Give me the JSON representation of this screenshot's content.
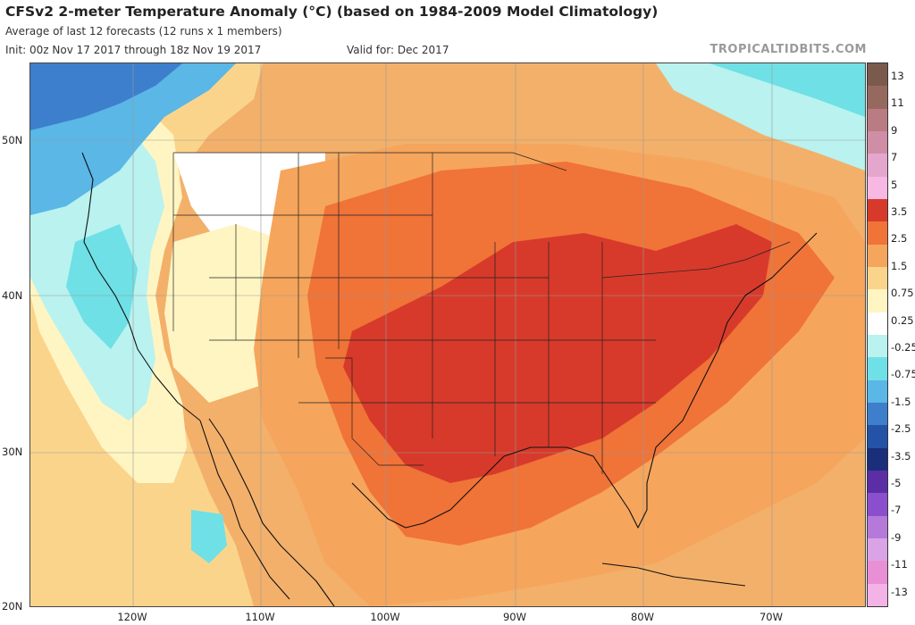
{
  "header": {
    "title": "CFSv2 2-meter Temperature Anomaly (°C) (based on 1984-2009 Model Climatology)",
    "subtitle": "Average of last 12 forecasts (12 runs x 1 members)",
    "init": "Init: 00z Nov 17 2017 through 18z Nov 19 2017",
    "valid": "Valid for: Dec 2017",
    "brand": "TROPICALTIDBITS.COM"
  },
  "axes": {
    "lat_labels": [
      "50N",
      "40N",
      "30N",
      "20N"
    ],
    "lon_labels": [
      "120W",
      "110W",
      "100W",
      "90W",
      "80W",
      "70W"
    ]
  },
  "legend": {
    "labels": [
      "13",
      "11",
      "9",
      "7",
      "5",
      "3.5",
      "2.5",
      "1.5",
      "0.75",
      "0.25",
      "-0.25",
      "-0.75",
      "-1.5",
      "-2.5",
      "-3.5",
      "-5",
      "-7",
      "-9",
      "-11",
      "-13"
    ],
    "colors": [
      "#7a5a4c",
      "#96695f",
      "#b87c82",
      "#cf8ea6",
      "#e4a6cc",
      "#f7b9e3",
      "#d73a2a",
      "#f07338",
      "#f6a55c",
      "#fbd48c",
      "#fff5c2",
      "#ffffff",
      "#b9f2ef",
      "#6fe0e6",
      "#5ab7e6",
      "#3d7fcc",
      "#2452a6",
      "#1a2e7a",
      "#5b2ea6",
      "#8a4fcc",
      "#b57ad9",
      "#d9a3e6",
      "#e98fd6",
      "#f4b3e6"
    ]
  },
  "map_colors": {
    "ocean_base": "#f3b06a",
    "west_warm": "#fbd48c",
    "pale": "#fff5c2",
    "white": "#ffffff",
    "cool_light": "#b9f2ef",
    "cool": "#6fe0e6",
    "cool_mid": "#5ab7e6",
    "cold": "#3d7fcc",
    "warm1": "#f6a55c",
    "warm2": "#f07338",
    "warm3": "#d73a2a",
    "coast": "#000000"
  }
}
